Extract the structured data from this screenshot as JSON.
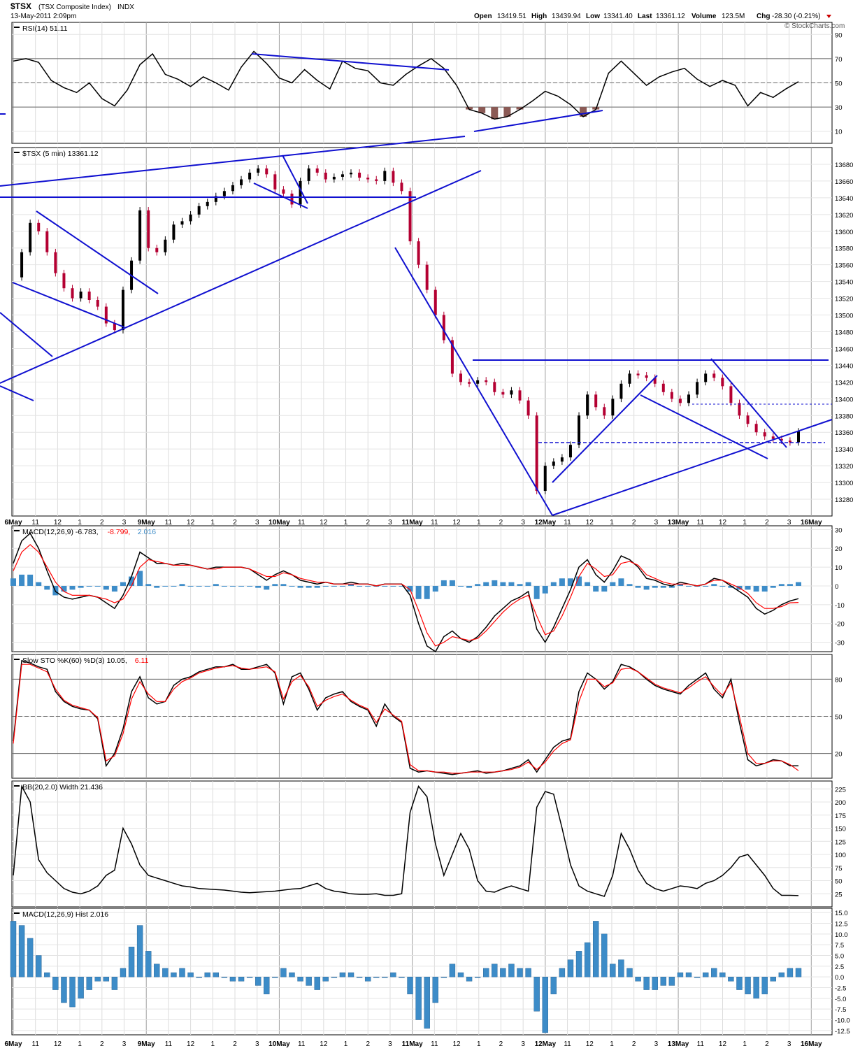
{
  "header": {
    "symbol": "$TSX",
    "name": "(TSX Composite Index)",
    "exchange": "INDX",
    "datetime": "13-May-2011 2:09pm",
    "open_label": "Open",
    "open": "13419.51",
    "high_label": "High",
    "high": "13439.94",
    "low_label": "Low",
    "low": "13341.40",
    "last_label": "Last",
    "last": "13361.12",
    "volume_label": "Volume",
    "volume": "123.5M",
    "chg_label": "Chg",
    "chg": "-28.30 (-0.21%)",
    "watermark": "© StockCharts.com"
  },
  "colors": {
    "down": "#b40032",
    "up": "#000000",
    "trend": "#1010d0",
    "hist": "#3d8cc8",
    "signal": "#ff0000",
    "rsi_fill": "#8b5a55",
    "grid": "#c8c8c8"
  },
  "xaxis": {
    "labels": [
      "6May",
      "11",
      "12",
      "1",
      "2",
      "3",
      "9May",
      "11",
      "12",
      "1",
      "2",
      "3",
      "10May",
      "11",
      "12",
      "1",
      "2",
      "3",
      "11May",
      "11",
      "12",
      "1",
      "2",
      "3",
      "12May",
      "11",
      "12",
      "1",
      "2",
      "3",
      "13May",
      "11",
      "12",
      "1",
      "2",
      "3",
      "16May"
    ],
    "major": [
      "6May",
      "9May",
      "10May",
      "11May",
      "12May",
      "13May",
      "16May"
    ]
  },
  "chart_data": [
    {
      "type": "line",
      "title": "RSI(14) 51.11",
      "legend": [
        {
          "text": "RSI(14) 51.11",
          "color": "#000000"
        }
      ],
      "ylim": [
        0,
        100
      ],
      "yticks": [
        "90",
        "70",
        "50",
        "30",
        "10"
      ],
      "reference_levels": [
        70,
        50,
        30
      ],
      "series": [
        {
          "name": "RSI(14)",
          "values": [
            68,
            70,
            67,
            52,
            46,
            42,
            50,
            37,
            31,
            44,
            65,
            74,
            57,
            53,
            47,
            55,
            50,
            44,
            63,
            76,
            66,
            54,
            50,
            61,
            52,
            45,
            68,
            62,
            60,
            50,
            48,
            57,
            64,
            70,
            62,
            48,
            28,
            25,
            20,
            22,
            28,
            35,
            43,
            39,
            32,
            22,
            28,
            58,
            68,
            58,
            48,
            55,
            59,
            62,
            53,
            47,
            52,
            48,
            31,
            42,
            38,
            45,
            51
          ]
        }
      ]
    },
    {
      "type": "candlestick",
      "title": "$TSX (5 min) 13361.12",
      "legend": [
        {
          "text": "$TSX (5 min) 13361.12",
          "color": "#000000"
        }
      ],
      "ylim": [
        13260,
        13700
      ],
      "yticks": [
        "13680",
        "13660",
        "13640",
        "13620",
        "13600",
        "13580",
        "13560",
        "13540",
        "13520",
        "13500",
        "13480",
        "13460",
        "13440",
        "13420",
        "13400",
        "13380",
        "13360",
        "13340",
        "13320",
        "13300",
        "13280"
      ],
      "series": [
        {
          "name": "$TSX",
          "values": [
            13545,
            13575,
            13610,
            13600,
            13575,
            13550,
            13532,
            13520,
            13528,
            13518,
            13510,
            13490,
            13482,
            13530,
            13565,
            13625,
            13580,
            13575,
            13590,
            13608,
            13612,
            13620,
            13630,
            13635,
            13642,
            13648,
            13655,
            13662,
            13670,
            13675,
            13668,
            13650,
            13645,
            13632,
            13660,
            13675,
            13670,
            13662,
            13665,
            13668,
            13670,
            13664,
            13662,
            13660,
            13672,
            13658,
            13648,
            13588,
            13560,
            13530,
            13500,
            13470,
            13430,
            13420,
            13418,
            13422,
            13420,
            13408,
            13405,
            13410,
            13398,
            13380,
            13290,
            13320,
            13325,
            13330,
            13345,
            13380,
            13405,
            13390,
            13380,
            13400,
            13418,
            13430,
            13428,
            13425,
            13418,
            13408,
            13400,
            13395,
            13405,
            13420,
            13430,
            13425,
            13415,
            13395,
            13380,
            13370,
            13360,
            13355,
            13352,
            13350,
            13348,
            13361
          ]
        }
      ]
    },
    {
      "type": "line",
      "title": "MACD(12,26,9) -6.783, -8.799, 2.016",
      "legend": [
        {
          "text": "MACD(12,26,9) -6.783,",
          "color": "#000000"
        },
        {
          "text": "-8.799,",
          "color": "#ff0000"
        },
        {
          "text": "2.016",
          "color": "#3d8cc8"
        }
      ],
      "ylim": [
        -35,
        32
      ],
      "yticks": [
        "30",
        "20",
        "10",
        "0",
        "-10",
        "-20",
        "-30"
      ],
      "series": [
        {
          "name": "MACD",
          "values": [
            12,
            24,
            28,
            20,
            8,
            -3,
            -6,
            -7,
            -6,
            -5,
            -6,
            -9,
            -12,
            -5,
            5,
            18,
            15,
            12,
            12,
            11,
            12,
            11,
            10,
            9,
            10,
            10,
            10,
            10,
            9,
            6,
            3,
            6,
            8,
            6,
            3,
            2,
            1,
            2,
            1,
            1,
            2,
            1,
            1,
            0,
            1,
            1,
            1,
            -5,
            -20,
            -32,
            -35,
            -27,
            -24,
            -28,
            -30,
            -27,
            -22,
            -16,
            -12,
            -8,
            -6,
            -3,
            -23,
            -30,
            -22,
            -12,
            -2,
            10,
            14,
            6,
            2,
            8,
            16,
            14,
            10,
            4,
            3,
            1,
            0,
            2,
            1,
            0,
            1,
            4,
            3,
            0,
            -3,
            -6,
            -12,
            -15,
            -13,
            -10,
            -8,
            -6.783
          ]
        },
        {
          "name": "Signal",
          "values": [
            8,
            18,
            22,
            18,
            10,
            2,
            -3,
            -5,
            -5,
            -5,
            -6,
            -7,
            -9,
            -7,
            0,
            10,
            14,
            13,
            12,
            11,
            11,
            11,
            10,
            9,
            9,
            10,
            10,
            10,
            9,
            7,
            5,
            5,
            7,
            6,
            4,
            3,
            2,
            2,
            1,
            1,
            1,
            1,
            1,
            0,
            1,
            1,
            1,
            -2,
            -13,
            -25,
            -32,
            -30,
            -27,
            -28,
            -29,
            -28,
            -24,
            -19,
            -14,
            -10,
            -7,
            -5,
            -16,
            -26,
            -24,
            -16,
            -6,
            5,
            12,
            9,
            5,
            6,
            12,
            13,
            11,
            6,
            4,
            2,
            1,
            1,
            1,
            0,
            1,
            3,
            3,
            1,
            -1,
            -4,
            -9,
            -12,
            -12,
            -11,
            -9,
            -8.799
          ]
        }
      ],
      "histogram": [
        4,
        6,
        6,
        2,
        -2,
        -5,
        -3,
        -2,
        -1,
        0,
        0,
        -2,
        -3,
        2,
        5,
        8,
        1,
        -1,
        0,
        0,
        1,
        0,
        0,
        0,
        1,
        0,
        0,
        0,
        0,
        -1,
        -2,
        1,
        1,
        0,
        -1,
        -1,
        -1,
        0,
        0,
        0,
        1,
        0,
        0,
        0,
        0,
        0,
        0,
        -3,
        -7,
        -7,
        -3,
        3,
        3,
        0,
        -1,
        1,
        2,
        3,
        2,
        2,
        1,
        2,
        -7,
        -4,
        2,
        4,
        4,
        5,
        2,
        -3,
        -3,
        2,
        4,
        1,
        -1,
        -2,
        -1,
        -1,
        -1,
        1,
        0,
        0,
        0,
        1,
        0,
        -1,
        -2,
        -2,
        -3,
        -3,
        -1,
        1,
        1,
        2.016
      ]
    },
    {
      "type": "line",
      "title": "Slow STO %K(60) %D(3) 10.05, 6.11",
      "legend": [
        {
          "text": "Slow STO %K(60) %D(3) 10.05,",
          "color": "#000000"
        },
        {
          "text": "6.11",
          "color": "#ff0000"
        }
      ],
      "ylim": [
        0,
        100
      ],
      "yticks": [
        "80",
        "50",
        "20"
      ],
      "reference_levels": [
        80,
        50,
        20
      ],
      "series": [
        {
          "name": "%K",
          "values": [
            30,
            95,
            93,
            90,
            88,
            70,
            62,
            58,
            56,
            55,
            48,
            10,
            20,
            40,
            70,
            82,
            65,
            60,
            62,
            75,
            80,
            82,
            86,
            88,
            90,
            90,
            92,
            88,
            88,
            90,
            92,
            85,
            60,
            82,
            85,
            72,
            55,
            65,
            68,
            70,
            62,
            58,
            55,
            42,
            60,
            50,
            45,
            8,
            5,
            6,
            5,
            4,
            3,
            4,
            5,
            6,
            4,
            5,
            6,
            8,
            10,
            15,
            5,
            15,
            25,
            30,
            32,
            70,
            85,
            80,
            72,
            78,
            92,
            90,
            86,
            80,
            75,
            72,
            70,
            68,
            75,
            80,
            85,
            72,
            65,
            80,
            45,
            15,
            10,
            12,
            15,
            14,
            10,
            10.05
          ]
        },
        {
          "name": "%D",
          "values": [
            28,
            92,
            92,
            89,
            86,
            72,
            63,
            59,
            57,
            55,
            49,
            14,
            18,
            36,
            64,
            78,
            68,
            62,
            62,
            72,
            78,
            81,
            85,
            87,
            89,
            90,
            91,
            89,
            88,
            89,
            90,
            86,
            64,
            78,
            83,
            74,
            58,
            63,
            66,
            68,
            63,
            59,
            56,
            45,
            56,
            51,
            46,
            11,
            6,
            6,
            5,
            5,
            4,
            4,
            5,
            5,
            5,
            5,
            6,
            7,
            9,
            13,
            7,
            13,
            22,
            28,
            31,
            62,
            80,
            80,
            74,
            77,
            88,
            89,
            86,
            81,
            76,
            73,
            71,
            69,
            73,
            78,
            82,
            74,
            67,
            77,
            50,
            20,
            12,
            12,
            14,
            14,
            11,
            6.11
          ]
        }
      ]
    },
    {
      "type": "line",
      "title": "BB(20,2.0) Width 21.436",
      "legend": [
        {
          "text": "BB(20,2.0) Width 21.436",
          "color": "#000000"
        }
      ],
      "ylim": [
        0,
        240
      ],
      "yticks": [
        "225",
        "200",
        "175",
        "150",
        "125",
        "100",
        "75",
        "50",
        "25"
      ],
      "series": [
        {
          "name": "BB Width",
          "values": [
            60,
            230,
            200,
            90,
            65,
            50,
            35,
            28,
            25,
            30,
            40,
            60,
            70,
            150,
            120,
            80,
            60,
            55,
            50,
            45,
            40,
            38,
            35,
            34,
            33,
            32,
            30,
            28,
            27,
            28,
            29,
            30,
            32,
            34,
            35,
            40,
            45,
            35,
            30,
            28,
            25,
            24,
            24,
            25,
            22,
            22,
            25,
            180,
            230,
            210,
            120,
            60,
            100,
            140,
            110,
            50,
            30,
            28,
            35,
            40,
            35,
            30,
            190,
            220,
            215,
            150,
            80,
            40,
            30,
            25,
            20,
            60,
            140,
            110,
            70,
            45,
            35,
            30,
            35,
            40,
            38,
            35,
            45,
            50,
            60,
            75,
            95,
            100,
            80,
            60,
            35,
            22,
            22,
            21.436
          ]
        }
      ]
    },
    {
      "type": "bar",
      "title": "MACD(12,26,9) Hist 2.016",
      "legend": [
        {
          "text": "MACD(12,26,9) Hist 2.016",
          "color": "#000000"
        }
      ],
      "ylim": [
        -13.5,
        16
      ],
      "yticks": [
        "15.0",
        "12.5",
        "10.0",
        "7.5",
        "5.0",
        "2.5",
        "0.0",
        "-2.5",
        "-5.0",
        "-7.5",
        "-10.0",
        "-12.5"
      ],
      "values": [
        13,
        12,
        9,
        5,
        1,
        -3,
        -6,
        -7,
        -5,
        -3,
        -1,
        -1,
        -3,
        2,
        7,
        12,
        6,
        3,
        2,
        1,
        2,
        1,
        0,
        1,
        1,
        0,
        -1,
        -1,
        0,
        -2,
        -4,
        0,
        2,
        1,
        -1,
        -2,
        -3,
        -1,
        0,
        1,
        1,
        0,
        -1,
        0,
        0,
        1,
        0,
        -4,
        -10,
        -12,
        -6,
        0,
        3,
        1,
        -1,
        0,
        2,
        3,
        2,
        3,
        2,
        2,
        -8,
        -13,
        -4,
        2,
        4,
        6,
        8,
        13,
        10,
        3,
        4,
        2,
        -1,
        -3,
        -3,
        -2,
        -2,
        1,
        1,
        0,
        1,
        2,
        1,
        -1,
        -3,
        -4,
        -5,
        -4,
        -1,
        1,
        2,
        2.016
      ]
    }
  ]
}
